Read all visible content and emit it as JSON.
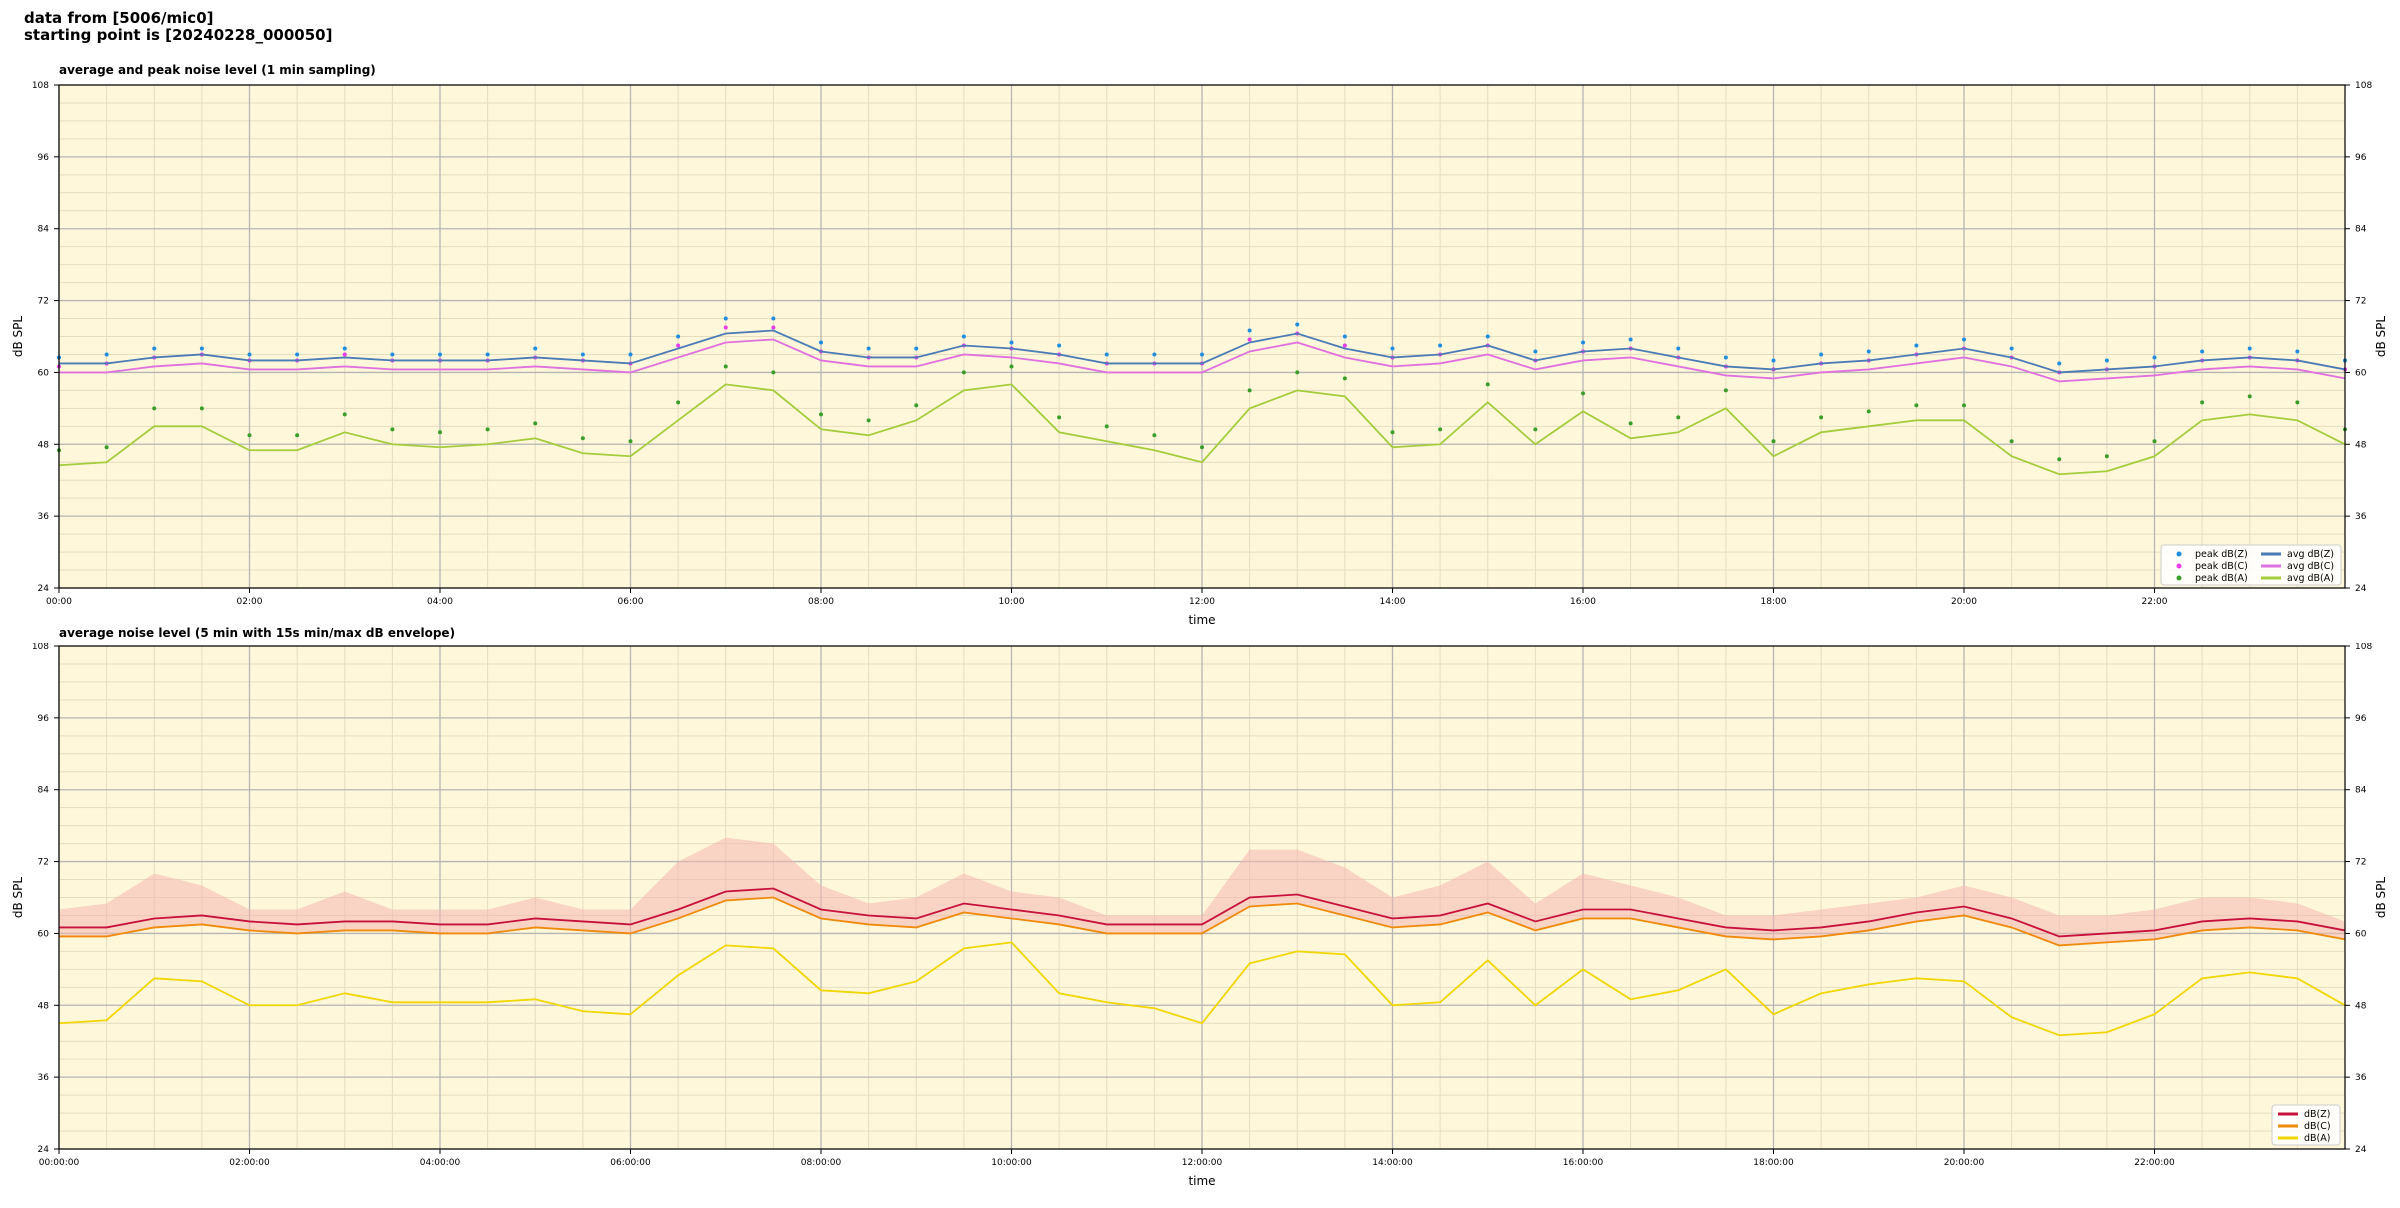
{
  "header": {
    "line1": "data from [5006/mic0]",
    "line2": "starting point is [20240228_000050]"
  },
  "colors": {
    "plot_bg": "#fff7da",
    "peak_z": "#1f8ee0",
    "peak_c": "#e83de8",
    "peak_a": "#3b9e2a",
    "avg_z": "#4a7bb7",
    "avg_c": "#e070e0",
    "avg_a": "#a4cc3c",
    "dbz": "#c8103c",
    "dbc": "#f08a0a",
    "dba": "#f2d600",
    "envelope": "#f4b6b0"
  },
  "chart_data": [
    {
      "type": "line",
      "title": "average and peak noise level (1 min sampling)",
      "xlabel": "time",
      "ylabel": "dB SPL",
      "xlim": [
        0,
        24
      ],
      "ylim": [
        24,
        108
      ],
      "yticks": [
        24,
        36,
        48,
        60,
        72,
        84,
        96,
        108
      ],
      "xtick_labels": [
        "00:00",
        "02:00",
        "04:00",
        "06:00",
        "08:00",
        "10:00",
        "12:00",
        "14:00",
        "16:00",
        "18:00",
        "20:00",
        "22:00"
      ],
      "grid": true,
      "legend_position": "lower-right",
      "legend": [
        {
          "label": "peak dB(Z)",
          "kind": "dot",
          "color": "#1f8ee0"
        },
        {
          "label": "peak dB(C)",
          "kind": "dot",
          "color": "#e83de8"
        },
        {
          "label": "peak dB(A)",
          "kind": "dot",
          "color": "#3b9e2a"
        },
        {
          "label": "avg dB(Z)",
          "kind": "line",
          "color": "#4a7bb7"
        },
        {
          "label": "avg dB(C)",
          "kind": "line",
          "color": "#e070e0"
        },
        {
          "label": "avg dB(A)",
          "kind": "line",
          "color": "#a4cc3c"
        }
      ],
      "x": [
        0,
        0.5,
        1,
        1.5,
        2,
        2.5,
        3,
        3.5,
        4,
        4.5,
        5,
        5.5,
        6,
        6.5,
        7,
        7.5,
        8,
        8.5,
        9,
        9.5,
        10,
        10.5,
        11,
        11.5,
        12,
        12.5,
        13,
        13.5,
        14,
        14.5,
        15,
        15.5,
        16,
        16.5,
        17,
        17.5,
        18,
        18.5,
        19,
        19.5,
        20,
        20.5,
        21,
        21.5,
        22,
        22.5,
        23,
        23.5,
        24
      ],
      "series": [
        {
          "name": "avg dB(Z)",
          "style": "line",
          "values": [
            61.5,
            61.5,
            62.5,
            63,
            62,
            62,
            62.5,
            62,
            62,
            62,
            62.5,
            62,
            61.5,
            64,
            66.5,
            67,
            63.5,
            62.5,
            62.5,
            64.5,
            64,
            63,
            61.5,
            61.5,
            61.5,
            65,
            66.5,
            64,
            62.5,
            63,
            64.5,
            62,
            63.5,
            64,
            62.5,
            61,
            60.5,
            61.5,
            62,
            63,
            64,
            62.5,
            60,
            60.5,
            61,
            62,
            62.5,
            62,
            60.5
          ]
        },
        {
          "name": "avg dB(C)",
          "style": "line",
          "values": [
            60,
            60,
            61,
            61.5,
            60.5,
            60.5,
            61,
            60.5,
            60.5,
            60.5,
            61,
            60.5,
            60,
            62.5,
            65,
            65.5,
            62,
            61,
            61,
            63,
            62.5,
            61.5,
            60,
            60,
            60,
            63.5,
            65,
            62.5,
            61,
            61.5,
            63,
            60.5,
            62,
            62.5,
            61,
            59.5,
            59,
            60,
            60.5,
            61.5,
            62.5,
            61,
            58.5,
            59,
            59.5,
            60.5,
            61,
            60.5,
            59
          ]
        },
        {
          "name": "avg dB(A)",
          "style": "line",
          "values": [
            44.5,
            45,
            51,
            51,
            47,
            47,
            50,
            48,
            47.5,
            48,
            49,
            46.5,
            46,
            52,
            58,
            57,
            50.5,
            49.5,
            52,
            57,
            58,
            50,
            48.5,
            47,
            45,
            54,
            57,
            56,
            47.5,
            48,
            55,
            48,
            53.5,
            49,
            50,
            54,
            46,
            50,
            51,
            52,
            52,
            46,
            43,
            43.5,
            46,
            52,
            53,
            52,
            48
          ]
        },
        {
          "name": "peak dB(Z)",
          "style": "dots",
          "values": [
            62.5,
            63,
            64,
            64,
            63,
            63,
            64,
            63,
            63,
            63,
            64,
            63,
            63,
            66,
            69,
            69,
            65,
            64,
            64,
            66,
            65,
            64.5,
            63,
            63,
            63,
            67,
            68,
            66,
            64,
            64.5,
            66,
            63.5,
            65,
            65.5,
            64,
            62.5,
            62,
            63,
            63.5,
            64.5,
            65.5,
            64,
            61.5,
            62,
            62.5,
            63.5,
            64,
            63.5,
            62
          ]
        },
        {
          "name": "peak dB(C)",
          "style": "dots",
          "values": [
            61,
            61.5,
            62.5,
            63,
            62,
            62,
            63,
            62,
            62,
            62,
            62.5,
            62,
            61.5,
            64.5,
            67.5,
            67.5,
            63.5,
            62.5,
            62.5,
            64.5,
            64,
            63,
            61.5,
            61.5,
            61.5,
            65.5,
            66.5,
            64.5,
            62.5,
            63,
            64.5,
            62,
            63.5,
            64,
            62.5,
            61,
            60.5,
            61.5,
            62,
            63,
            64,
            62.5,
            60,
            60.5,
            61,
            62,
            62.5,
            62,
            60.5
          ]
        },
        {
          "name": "peak dB(A)",
          "style": "dots",
          "values": [
            47,
            47.5,
            54,
            54,
            49.5,
            49.5,
            53,
            50.5,
            50,
            50.5,
            51.5,
            49,
            48.5,
            55,
            61,
            60,
            53,
            52,
            54.5,
            60,
            61,
            52.5,
            51,
            49.5,
            47.5,
            57,
            60,
            59,
            50,
            50.5,
            58,
            50.5,
            56.5,
            51.5,
            52.5,
            57,
            48.5,
            52.5,
            53.5,
            54.5,
            54.5,
            48.5,
            45.5,
            46,
            48.5,
            55,
            56,
            55,
            50.5
          ]
        }
      ]
    },
    {
      "type": "line",
      "title": "average noise level (5 min with 15s min/max dB envelope)",
      "xlabel": "time",
      "ylabel": "dB SPL",
      "xlim": [
        0,
        24
      ],
      "ylim": [
        24,
        108
      ],
      "yticks": [
        24,
        36,
        48,
        60,
        72,
        84,
        96,
        108
      ],
      "xtick_labels": [
        "00:00:00",
        "02:00:00",
        "04:00:00",
        "06:00:00",
        "08:00:00",
        "10:00:00",
        "12:00:00",
        "14:00:00",
        "16:00:00",
        "18:00:00",
        "20:00:00",
        "22:00:00"
      ],
      "grid": true,
      "legend_position": "lower-right",
      "legend": [
        {
          "label": "dB(Z)",
          "kind": "line",
          "color": "#c8103c"
        },
        {
          "label": "dB(C)",
          "kind": "line",
          "color": "#f08a0a"
        },
        {
          "label": "dB(A)",
          "kind": "line",
          "color": "#f2d600"
        }
      ],
      "x": [
        0,
        0.5,
        1,
        1.5,
        2,
        2.5,
        3,
        3.5,
        4,
        4.5,
        5,
        5.5,
        6,
        6.5,
        7,
        7.5,
        8,
        8.5,
        9,
        9.5,
        10,
        10.5,
        11,
        11.5,
        12,
        12.5,
        13,
        13.5,
        14,
        14.5,
        15,
        15.5,
        16,
        16.5,
        17,
        17.5,
        18,
        18.5,
        19,
        19.5,
        20,
        20.5,
        21,
        21.5,
        22,
        22.5,
        23,
        23.5,
        24
      ],
      "envelope_max": [
        64,
        65,
        70,
        68,
        64,
        64,
        67,
        64,
        64,
        64,
        66,
        64,
        64,
        72,
        76,
        75,
        68,
        65,
        66,
        70,
        67,
        66,
        63,
        63,
        63,
        74,
        74,
        71,
        66,
        68,
        72,
        65,
        70,
        68,
        66,
        63,
        63,
        64,
        65,
        66,
        68,
        66,
        63,
        63,
        64,
        66,
        66,
        65,
        62
      ],
      "series": [
        {
          "name": "dB(Z)",
          "values": [
            61,
            61,
            62.5,
            63,
            62,
            61.5,
            62,
            62,
            61.5,
            61.5,
            62.5,
            62,
            61.5,
            64,
            67,
            67.5,
            64,
            63,
            62.5,
            65,
            64,
            63,
            61.5,
            61.5,
            61.5,
            66,
            66.5,
            64.5,
            62.5,
            63,
            65,
            62,
            64,
            64,
            62.5,
            61,
            60.5,
            61,
            62,
            63.5,
            64.5,
            62.5,
            59.5,
            60,
            60.5,
            62,
            62.5,
            62,
            60.5
          ]
        },
        {
          "name": "dB(C)",
          "values": [
            59.5,
            59.5,
            61,
            61.5,
            60.5,
            60,
            60.5,
            60.5,
            60,
            60,
            61,
            60.5,
            60,
            62.5,
            65.5,
            66,
            62.5,
            61.5,
            61,
            63.5,
            62.5,
            61.5,
            60,
            60,
            60,
            64.5,
            65,
            63,
            61,
            61.5,
            63.5,
            60.5,
            62.5,
            62.5,
            61,
            59.5,
            59,
            59.5,
            60.5,
            62,
            63,
            61,
            58,
            58.5,
            59,
            60.5,
            61,
            60.5,
            59
          ]
        },
        {
          "name": "dB(A)",
          "values": [
            45,
            45.5,
            52.5,
            52,
            48,
            48,
            50,
            48.5,
            48.5,
            48.5,
            49,
            47,
            46.5,
            53,
            58,
            57.5,
            50.5,
            50,
            52,
            57.5,
            58.5,
            50,
            48.5,
            47.5,
            45,
            55,
            57,
            56.5,
            48,
            48.5,
            55.5,
            48,
            54,
            49,
            50.5,
            54,
            46.5,
            50,
            51.5,
            52.5,
            52,
            46,
            43,
            43.5,
            46.5,
            52.5,
            53.5,
            52.5,
            48
          ]
        }
      ]
    }
  ]
}
